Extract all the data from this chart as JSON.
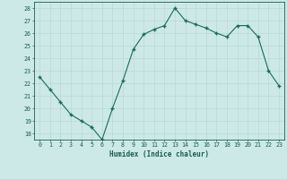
{
  "x": [
    0,
    1,
    2,
    3,
    4,
    5,
    6,
    7,
    8,
    9,
    10,
    11,
    12,
    13,
    14,
    15,
    16,
    17,
    18,
    19,
    20,
    21,
    22,
    23
  ],
  "y": [
    22.5,
    21.5,
    20.5,
    19.5,
    19.0,
    18.5,
    17.5,
    20.0,
    22.2,
    24.7,
    25.9,
    26.3,
    26.6,
    28.0,
    27.0,
    26.7,
    26.4,
    26.0,
    25.7,
    26.6,
    26.6,
    25.7,
    23.0,
    21.8
  ],
  "line_color": "#1a6b5a",
  "marker_color": "#1a6b5a",
  "bg_color": "#cce9e7",
  "grid_color": "#b8d8d5",
  "xlabel": "Humidex (Indice chaleur)",
  "ylabel_ticks": [
    18,
    19,
    20,
    21,
    22,
    23,
    24,
    25,
    26,
    27,
    28
  ],
  "xlim": [
    -0.5,
    23.5
  ],
  "ylim": [
    17.5,
    28.5
  ],
  "xticks": [
    0,
    1,
    2,
    3,
    4,
    5,
    6,
    7,
    8,
    9,
    10,
    11,
    12,
    13,
    14,
    15,
    16,
    17,
    18,
    19,
    20,
    21,
    22,
    23
  ],
  "xtick_labels": [
    "0",
    "1",
    "2",
    "3",
    "4",
    "5",
    "6",
    "7",
    "8",
    "9",
    "10",
    "11",
    "12",
    "13",
    "14",
    "15",
    "16",
    "17",
    "18",
    "19",
    "20",
    "21",
    "22",
    "23"
  ],
  "font_color": "#1a5c4e",
  "axis_color": "#1a5c4e"
}
